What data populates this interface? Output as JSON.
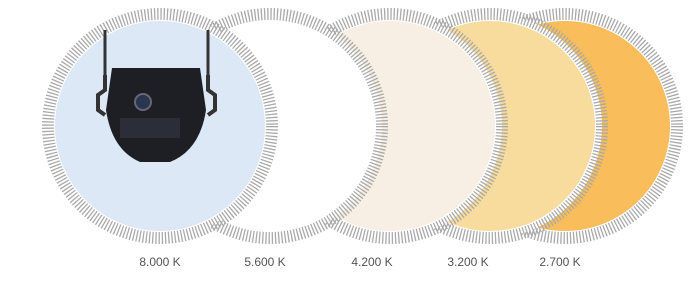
{
  "temperatures": [
    {
      "label": "8.000 K"
    },
    {
      "label": "5.600 K"
    },
    {
      "label": "4.200 K"
    },
    {
      "label": "3.200 K"
    },
    {
      "label": "2.700 K"
    }
  ]
}
